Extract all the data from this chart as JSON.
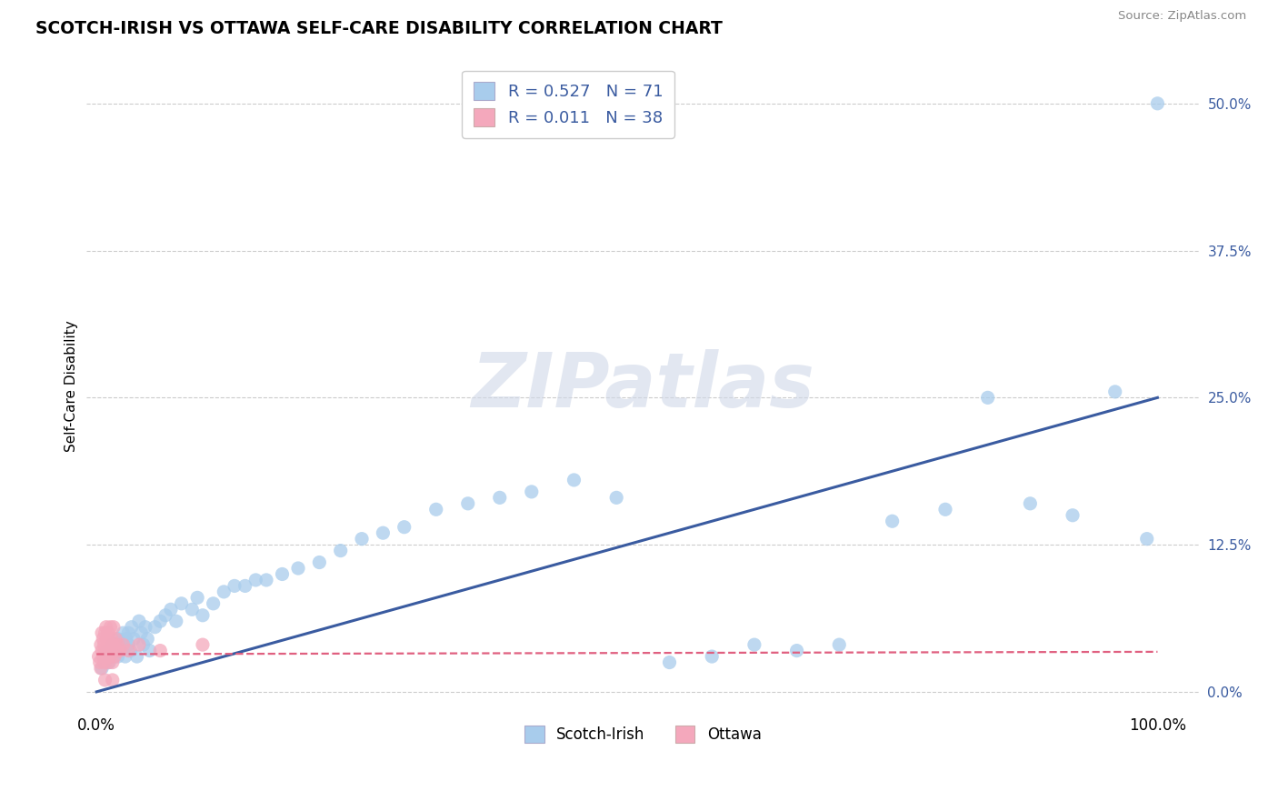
{
  "title": "SCOTCH-IRISH VS OTTAWA SELF-CARE DISABILITY CORRELATION CHART",
  "source": "Source: ZipAtlas.com",
  "ylabel": "Self-Care Disability",
  "ytick_labels": [
    "0.0%",
    "12.5%",
    "25.0%",
    "37.5%",
    "50.0%"
  ],
  "ytick_values": [
    0.0,
    0.125,
    0.25,
    0.375,
    0.5
  ],
  "xtick_labels": [
    "0.0%",
    "100.0%"
  ],
  "xtick_values": [
    0.0,
    1.0
  ],
  "xlim": [
    -0.01,
    1.04
  ],
  "ylim": [
    -0.015,
    0.535
  ],
  "watermark": "ZIPatlas",
  "legend_R1": "R = 0.527",
  "legend_N1": "N = 71",
  "legend_R2": "R = 0.011",
  "legend_N2": "N = 38",
  "blue_scatter_color": "#A8CCEC",
  "pink_scatter_color": "#F4A8BC",
  "blue_line_color": "#3A5BA0",
  "pink_line_color": "#E06080",
  "grid_color": "#CCCCCC",
  "scotch_irish_x": [
    0.005,
    0.008,
    0.01,
    0.01,
    0.012,
    0.013,
    0.015,
    0.015,
    0.016,
    0.017,
    0.018,
    0.02,
    0.02,
    0.022,
    0.025,
    0.025,
    0.027,
    0.028,
    0.03,
    0.03,
    0.032,
    0.033,
    0.035,
    0.038,
    0.04,
    0.042,
    0.044,
    0.046,
    0.048,
    0.05,
    0.055,
    0.06,
    0.065,
    0.07,
    0.075,
    0.08,
    0.09,
    0.095,
    0.1,
    0.11,
    0.12,
    0.13,
    0.14,
    0.15,
    0.16,
    0.175,
    0.19,
    0.21,
    0.23,
    0.25,
    0.27,
    0.29,
    0.32,
    0.35,
    0.38,
    0.41,
    0.45,
    0.49,
    0.54,
    0.58,
    0.62,
    0.66,
    0.7,
    0.75,
    0.8,
    0.84,
    0.88,
    0.92,
    0.96,
    0.99,
    1.0
  ],
  "scotch_irish_y": [
    0.02,
    0.025,
    0.03,
    0.035,
    0.025,
    0.03,
    0.035,
    0.04,
    0.03,
    0.035,
    0.04,
    0.03,
    0.045,
    0.035,
    0.04,
    0.05,
    0.03,
    0.045,
    0.04,
    0.05,
    0.035,
    0.055,
    0.045,
    0.03,
    0.06,
    0.05,
    0.04,
    0.055,
    0.045,
    0.035,
    0.055,
    0.06,
    0.065,
    0.07,
    0.06,
    0.075,
    0.07,
    0.08,
    0.065,
    0.075,
    0.085,
    0.09,
    0.09,
    0.095,
    0.095,
    0.1,
    0.105,
    0.11,
    0.12,
    0.13,
    0.135,
    0.14,
    0.155,
    0.16,
    0.165,
    0.17,
    0.18,
    0.165,
    0.025,
    0.03,
    0.04,
    0.035,
    0.04,
    0.145,
    0.155,
    0.25,
    0.16,
    0.15,
    0.255,
    0.13,
    0.5
  ],
  "ottawa_x": [
    0.002,
    0.003,
    0.004,
    0.004,
    0.005,
    0.005,
    0.006,
    0.006,
    0.007,
    0.007,
    0.008,
    0.008,
    0.009,
    0.009,
    0.01,
    0.01,
    0.011,
    0.011,
    0.012,
    0.012,
    0.013,
    0.013,
    0.014,
    0.015,
    0.015,
    0.016,
    0.017,
    0.018,
    0.019,
    0.02,
    0.022,
    0.025,
    0.03,
    0.04,
    0.06,
    0.1,
    0.015,
    0.008
  ],
  "ottawa_y": [
    0.03,
    0.025,
    0.04,
    0.02,
    0.035,
    0.05,
    0.03,
    0.045,
    0.025,
    0.04,
    0.035,
    0.05,
    0.03,
    0.055,
    0.035,
    0.045,
    0.025,
    0.05,
    0.04,
    0.03,
    0.055,
    0.035,
    0.045,
    0.025,
    0.04,
    0.055,
    0.03,
    0.045,
    0.035,
    0.04,
    0.035,
    0.04,
    0.035,
    0.04,
    0.035,
    0.04,
    0.01,
    0.01
  ],
  "blue_line_x": [
    0.0,
    1.0
  ],
  "blue_line_y": [
    0.0,
    0.25
  ],
  "pink_line_x": [
    0.0,
    1.0
  ],
  "pink_line_y": [
    0.032,
    0.034
  ]
}
